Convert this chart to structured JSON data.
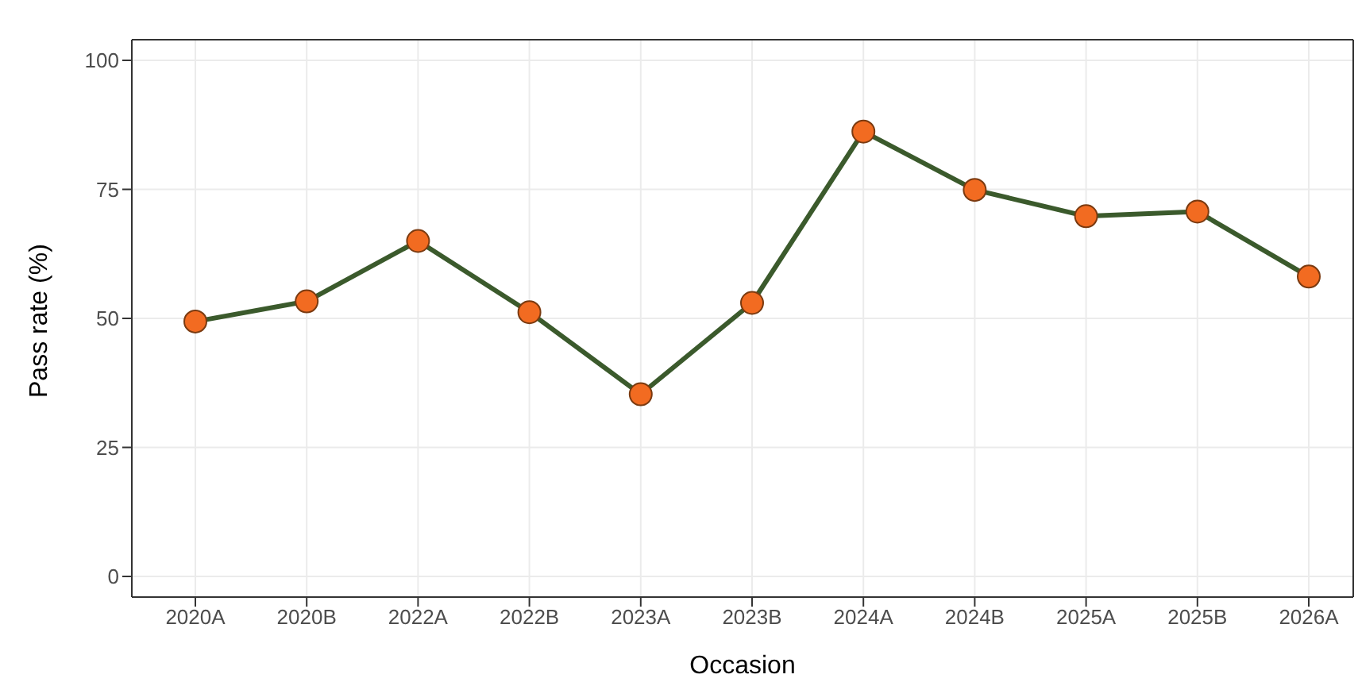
{
  "chart_data": {
    "type": "line",
    "xlabel": "Occasion",
    "ylabel": "Pass rate (%)",
    "categories": [
      "2020A",
      "2020B",
      "2022A",
      "2022B",
      "2023A",
      "2023B",
      "2024A",
      "2024B",
      "2025A",
      "2025B",
      "2026A"
    ],
    "series": [
      {
        "color": "#3b5a2c",
        "values": [
          49.4,
          53.3,
          65,
          51.2,
          35.3,
          53,
          86.2,
          74.9,
          69.8,
          70.7,
          58.1
        ]
      }
    ],
    "ylim": [
      -4,
      104
    ],
    "yticks": [
      0,
      25,
      50,
      75,
      100
    ],
    "grid": true,
    "marker": "circle",
    "line_style": "solid"
  }
}
